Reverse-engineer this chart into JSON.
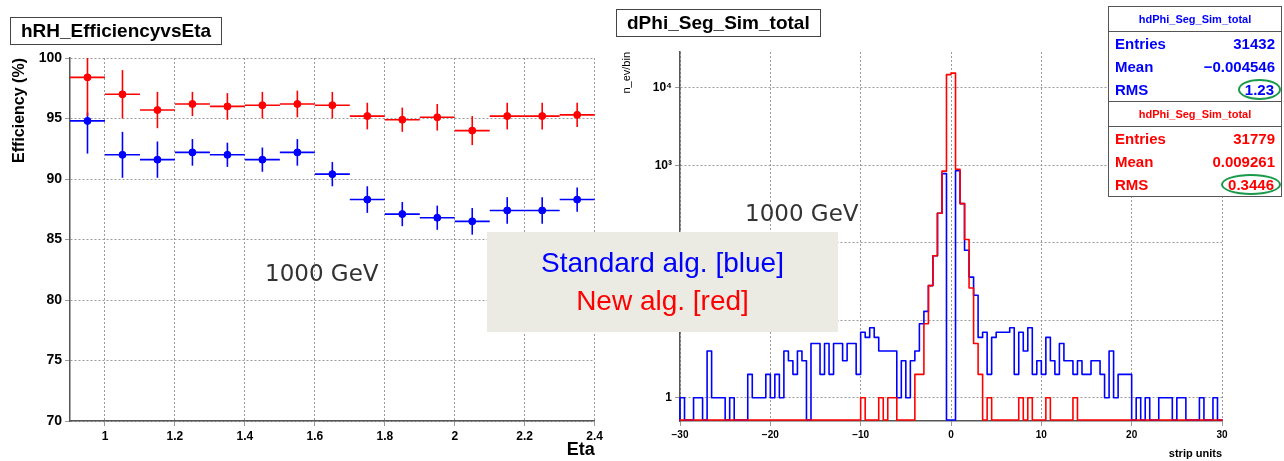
{
  "chart_data": [
    {
      "type": "scatter",
      "title": "hRH_EfficiencyvsEta",
      "xlabel": "Eta",
      "ylabel": "Efficiency (%)",
      "annotations": [
        "1000 GeV"
      ],
      "x": [
        0.95,
        1.05,
        1.15,
        1.25,
        1.35,
        1.45,
        1.55,
        1.65,
        1.75,
        1.85,
        1.95,
        2.05,
        2.15,
        2.25,
        2.35
      ],
      "series": [
        {
          "name": "Standard alg. [blue]",
          "color": "#0000ff",
          "values": [
            94.8,
            92.0,
            91.6,
            92.2,
            92.0,
            91.6,
            92.2,
            90.4,
            88.3,
            87.1,
            86.8,
            86.5,
            87.4,
            87.4,
            88.3
          ],
          "errors": [
            [
              92.1,
              95.5
            ],
            1.9,
            1.5,
            1.1,
            1.0,
            1.0,
            1.1,
            1.0,
            1.1,
            1.0,
            1.0,
            1.1,
            1.1,
            1.1,
            1.0
          ],
          "xerrors": [
            0.05,
            0.05,
            0.05,
            0.05,
            0.05,
            0.05,
            0.05,
            0.05,
            0.05,
            0.05,
            0.05,
            0.05,
            0.05,
            0.05,
            0.05
          ]
        },
        {
          "name": "New alg. [red]",
          "color": "#ff0000",
          "values": [
            98.4,
            97.0,
            95.7,
            96.2,
            96.0,
            96.1,
            96.2,
            96.1,
            95.2,
            94.9,
            95.1,
            94.0,
            95.2,
            95.2,
            95.3
          ],
          "errors": [
            [
              95.2,
              100
            ],
            2.0,
            1.5,
            1.0,
            1.1,
            1.1,
            1.1,
            1.1,
            1.1,
            1.0,
            1.1,
            1.2,
            1.1,
            1.1,
            1.0
          ],
          "xerrors": [
            0.05,
            0.05,
            0.05,
            0.05,
            0.05,
            0.05,
            0.05,
            0.05,
            0.05,
            0.05,
            0.05,
            0.05,
            0.05,
            0.05,
            0.05
          ]
        }
      ],
      "xlim": [
        0.9,
        2.4
      ],
      "xticks": [
        1,
        1.2,
        1.4,
        1.6,
        1.8,
        2,
        2.2,
        2.4
      ],
      "ylim": [
        70,
        100
      ],
      "yticks": [
        70,
        75,
        80,
        85,
        90,
        95,
        100
      ],
      "grid": true,
      "marker": "circle",
      "legend": "bottom right"
    },
    {
      "type": "histogram",
      "title": "dPhi_Seg_Sim_total",
      "xlabel": "strip units",
      "ylabel": "n_ev/bin",
      "annotations": [
        "1000 GeV",
        "hdPhi_Seg_Sim_total",
        "Entries",
        "31432",
        "Mean",
        "−0.004546",
        "RMS",
        "1.23",
        "hdPhi_Seg_Sim_total",
        "Entries",
        "31779",
        "Mean",
        "0.009261",
        "RMS",
        "0.3446"
      ],
      "bins": [
        -30,
        -29.5,
        -29,
        -28.5,
        -28,
        -27.5,
        -27,
        -26.5,
        -26,
        -25.5,
        -25,
        -24.5,
        -24,
        -23.5,
        -23,
        -22.5,
        -22,
        -21.5,
        -21,
        -20.5,
        -20,
        -19.5,
        -19,
        -18.5,
        -18,
        -17.5,
        -17,
        -16.5,
        -16,
        -15.5,
        -15,
        -14.5,
        -14,
        -13.5,
        -13,
        -12.5,
        -12,
        -11.5,
        -11,
        -10.5,
        -10,
        -9.5,
        -9,
        -8.5,
        -8,
        -7.5,
        -7,
        -6.5,
        -6,
        -5.5,
        -5,
        -4.5,
        -4,
        -3.5,
        -3,
        -2.5,
        -2,
        -1.5,
        -1,
        -0.5,
        0,
        0.5,
        1,
        1.5,
        2,
        2.5,
        3,
        3.5,
        4,
        4.5,
        5,
        5.5,
        6,
        6.5,
        7,
        7.5,
        8,
        8.5,
        9,
        9.5,
        10,
        10.5,
        11,
        11.5,
        12,
        12.5,
        13,
        13.5,
        14,
        14.5,
        15,
        15.5,
        16,
        16.5,
        17,
        17.5,
        18,
        18.5,
        19,
        19.5,
        20,
        20.5,
        21,
        21.5,
        22,
        22.5,
        23,
        23.5,
        24,
        24.5,
        25,
        25.5,
        26,
        26.5,
        27,
        27.5,
        28,
        28.5,
        29,
        29.5,
        30
      ],
      "series": [
        {
          "color": "#0000ff",
          "values": [
            1,
            null,
            null,
            1,
            1,
            null,
            4,
            1,
            1,
            1,
            null,
            1,
            null,
            null,
            null,
            2,
            1,
            1,
            1,
            2,
            1,
            2,
            1,
            4,
            3,
            2,
            4,
            3,
            null,
            5,
            5,
            2,
            5,
            2,
            5,
            5,
            3,
            5,
            5,
            2,
            7,
            6,
            8,
            6,
            4,
            4,
            4,
            4,
            1,
            3,
            1,
            3,
            4,
            9,
            13,
            28,
            68,
            240,
            780,
            null,
            null,
            850,
            320,
            80,
            36,
            21,
            6,
            7,
            2,
            6,
            7,
            7,
            7,
            8,
            2,
            7,
            4,
            8,
            2,
            3,
            2,
            6,
            3,
            2,
            5,
            3,
            3,
            2,
            3,
            2,
            2,
            3,
            3,
            2,
            1,
            4,
            1,
            2,
            2,
            2,
            null,
            1,
            null,
            1,
            null,
            null,
            1,
            1,
            1,
            null,
            1,
            1,
            null,
            null,
            null,
            1,
            null,
            null,
            1,
            null
          ]
        },
        {
          "color": "#ff0000",
          "values": [
            null,
            null,
            null,
            null,
            null,
            null,
            null,
            null,
            null,
            null,
            null,
            null,
            null,
            null,
            null,
            null,
            null,
            null,
            null,
            null,
            null,
            null,
            null,
            null,
            null,
            null,
            null,
            null,
            null,
            null,
            null,
            null,
            null,
            null,
            null,
            null,
            null,
            null,
            null,
            null,
            1,
            null,
            null,
            null,
            1,
            null,
            1,
            1,
            null,
            null,
            null,
            null,
            2,
            2,
            9,
            28,
            68,
            240,
            840,
            14800,
            15500,
            890,
            320,
            110,
            26,
            5,
            2,
            null,
            1,
            null,
            null,
            null,
            null,
            null,
            null,
            1,
            null,
            1,
            null,
            null,
            null,
            1,
            null,
            null,
            null,
            null,
            null,
            1,
            null,
            null,
            null,
            null,
            null,
            null,
            null,
            null,
            null,
            null,
            null,
            null,
            null,
            null,
            null,
            null,
            null,
            null,
            null,
            null,
            null,
            null,
            null,
            null,
            null,
            null,
            null,
            null,
            null,
            null,
            null,
            null
          ]
        }
      ],
      "xlim": [
        -30,
        30
      ],
      "xticks": [
        {
          "value": -30,
          "label": "−30"
        },
        {
          "value": -20,
          "label": "−20"
        },
        {
          "value": -10,
          "label": "−10"
        },
        0,
        10,
        20,
        30
      ],
      "ylim": [
        0.5,
        29000
      ],
      "yticks": [
        1,
        {
          "value": 10,
          "label": null
        },
        {
          "value": 100,
          "label": null
        },
        {
          "value": 1000,
          "label": "10³"
        },
        {
          "value": 10000,
          "label": "10⁴"
        }
      ],
      "log": "y",
      "grid": true
    }
  ]
}
